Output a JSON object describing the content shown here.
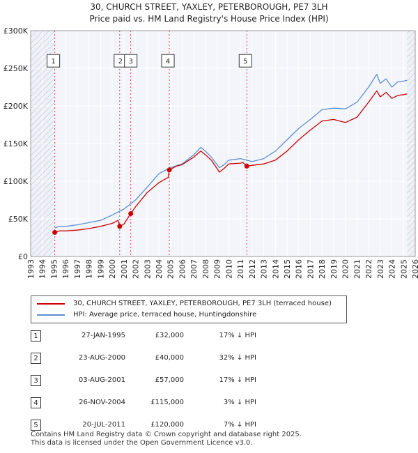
{
  "title_line1": "30, CHURCH STREET, YAXLEY, PETERBOROUGH, PE7 3LH",
  "title_line2": "Price paid vs. HM Land Registry's House Price Index (HPI)",
  "chart_data": {
    "type": "line",
    "title": "30, CHURCH STREET, YAXLEY, PETERBOROUGH, PE7 3LH — Price paid vs. HM Land Registry's House Price Index (HPI)",
    "xlabel": "",
    "ylabel": "",
    "xlim": [
      1993,
      2026
    ],
    "ylim": [
      0,
      300000
    ],
    "x_ticks": [
      1993,
      1994,
      1995,
      1996,
      1997,
      1998,
      1999,
      2000,
      2001,
      2002,
      2003,
      2004,
      2005,
      2006,
      2007,
      2008,
      2009,
      2010,
      2011,
      2012,
      2013,
      2014,
      2015,
      2016,
      2017,
      2018,
      2019,
      2020,
      2021,
      2022,
      2023,
      2024,
      2025,
      2026
    ],
    "y_ticks": [
      {
        "value": 0,
        "label": "£0"
      },
      {
        "value": 50000,
        "label": "£50K"
      },
      {
        "value": 100000,
        "label": "£100K"
      },
      {
        "value": 150000,
        "label": "£150K"
      },
      {
        "value": 200000,
        "label": "£200K"
      },
      {
        "value": 250000,
        "label": "£250K"
      },
      {
        "value": 300000,
        "label": "£300K"
      }
    ],
    "grid": true,
    "hatched_ranges": [
      [
        1993,
        1995.07
      ],
      [
        2025.3,
        2026
      ]
    ],
    "series": [
      {
        "name": "30, CHURCH STREET, YAXLEY, PETERBOROUGH, PE7 3LH (terraced house)",
        "color": "#cc0000",
        "x": [
          1995.07,
          1995.5,
          1996,
          1997,
          1998,
          1999,
          2000,
          2000.5,
          2000.64,
          2001,
          2001.59,
          2002,
          2003,
          2004,
          2004.8,
          2004.9,
          2005.5,
          2006,
          2007,
          2007.6,
          2008,
          2008.5,
          2009.2,
          2009.6,
          2010,
          2011,
          2011.2,
          2011.55,
          2012,
          2013,
          2014,
          2015,
          2016,
          2017,
          2018,
          2019,
          2020,
          2021,
          2022,
          2022.7,
          2023,
          2023.5,
          2024,
          2024.5,
          2025,
          2025.3
        ],
        "values": [
          32000,
          34000,
          34000,
          35000,
          37000,
          40000,
          44000,
          48000,
          40000,
          43000,
          57000,
          66000,
          85000,
          98000,
          105000,
          115000,
          120000,
          122000,
          132000,
          140000,
          135000,
          128000,
          112000,
          117000,
          123000,
          124000,
          125000,
          120000,
          121000,
          123000,
          128000,
          140000,
          155000,
          168000,
          180000,
          182000,
          178000,
          185000,
          205000,
          220000,
          212000,
          218000,
          210000,
          214000,
          215000,
          216000
        ]
      },
      {
        "name": "HPI: Average price, terraced house, Huntingdonshire",
        "color": "#5b8fcf",
        "x": [
          1995.07,
          1995.5,
          1996,
          1997,
          1998,
          1999,
          2000,
          2001,
          2002,
          2003,
          2004,
          2005,
          2006,
          2007,
          2007.6,
          2008,
          2008.5,
          2009.2,
          2009.6,
          2010,
          2011,
          2011.55,
          2012,
          2013,
          2014,
          2015,
          2016,
          2017,
          2018,
          2019,
          2020,
          2021,
          2022,
          2022.7,
          2023,
          2023.5,
          2024,
          2024.5,
          2025,
          2025.3
        ],
        "values": [
          38000,
          40000,
          40000,
          42000,
          45000,
          48000,
          55000,
          63000,
          75000,
          92000,
          110000,
          118000,
          123000,
          135000,
          145000,
          140000,
          132000,
          118000,
          122000,
          128000,
          130000,
          128000,
          126000,
          130000,
          140000,
          155000,
          170000,
          182000,
          195000,
          197000,
          196000,
          205000,
          225000,
          242000,
          230000,
          236000,
          225000,
          232000,
          233000,
          234000
        ]
      }
    ],
    "sales": [
      {
        "id": "1",
        "x": 1995.07,
        "value": 32000
      },
      {
        "id": "2",
        "x": 2000.64,
        "value": 40000
      },
      {
        "id": "3",
        "x": 2001.59,
        "value": 57000
      },
      {
        "id": "4",
        "x": 2004.9,
        "value": 115000
      },
      {
        "id": "5",
        "x": 2011.55,
        "value": 120000
      }
    ]
  },
  "legend": {
    "property": "30, CHURCH STREET, YAXLEY, PETERBOROUGH, PE7 3LH (terraced house)",
    "hpi": "HPI: Average price, terraced house, Huntingdonshire"
  },
  "sales_table": [
    {
      "id": "1",
      "date": "27-JAN-1995",
      "price": "£32,000",
      "diff": "17% ↓ HPI"
    },
    {
      "id": "2",
      "date": "23-AUG-2000",
      "price": "£40,000",
      "diff": "32% ↓ HPI"
    },
    {
      "id": "3",
      "date": "03-AUG-2001",
      "price": "£57,000",
      "diff": "17% ↓ HPI"
    },
    {
      "id": "4",
      "date": "26-NOV-2004",
      "price": "£115,000",
      "diff": "3% ↓ HPI"
    },
    {
      "id": "5",
      "date": "20-JUL-2011",
      "price": "£120,000",
      "diff": "7% ↓ HPI"
    }
  ],
  "footer": {
    "line1": "Contains HM Land Registry data © Crown copyright and database right 2025.",
    "line2": "This data is licensed under the Open Government Licence v3.0."
  }
}
